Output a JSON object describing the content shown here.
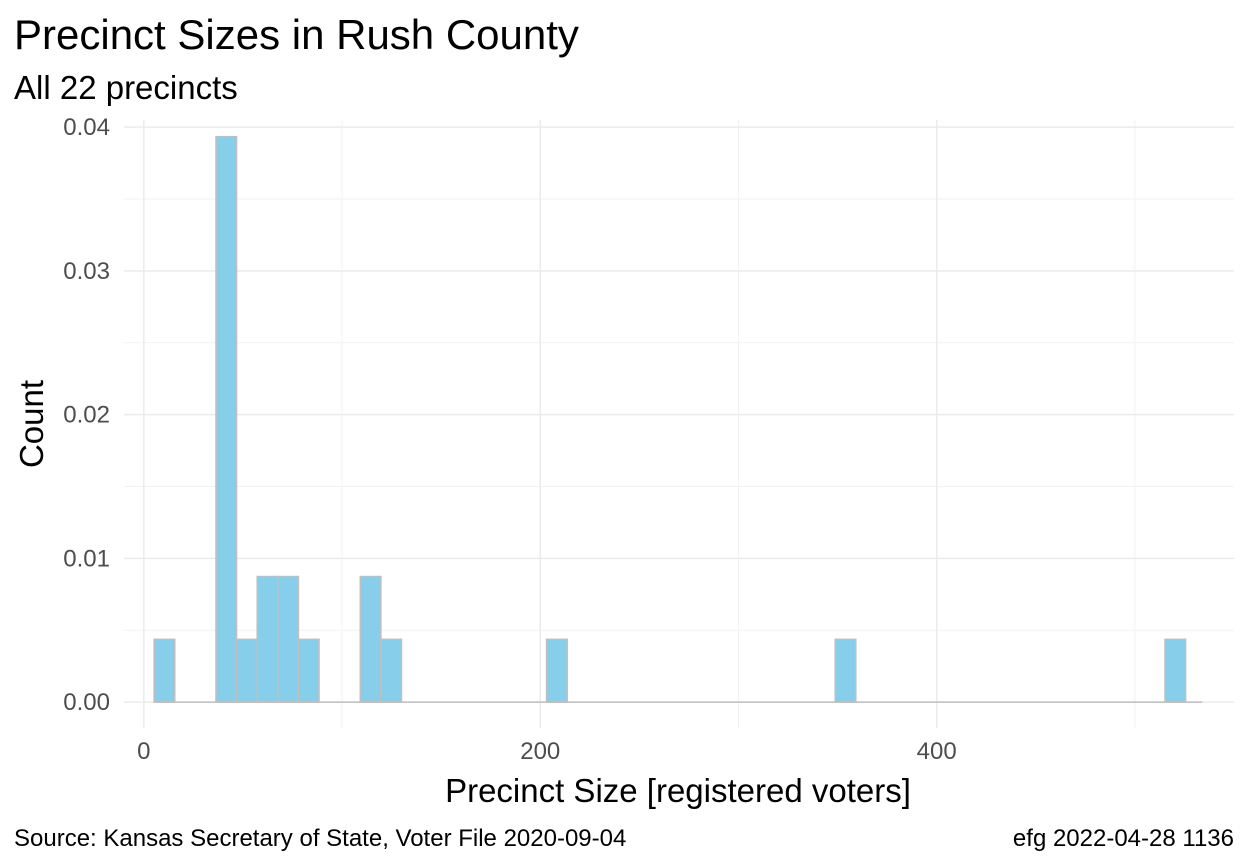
{
  "chart_data": {
    "type": "bar",
    "title": "Precinct Sizes in Rush County",
    "subtitle": "All 22 precincts",
    "xlabel": "Precinct Size [registered voters]",
    "ylabel": "Count",
    "caption_left": "Source:  Kansas Secretary of State, Voter File  2020-09-04",
    "caption_right": "efg 2022-04-28 1136",
    "xlim": [
      -10,
      550
    ],
    "ylim": [
      -0.0018,
      0.0405
    ],
    "x_ticks": [
      0,
      200,
      400
    ],
    "x_tick_labels": [
      "0",
      "200",
      "400"
    ],
    "y_ticks": [
      0,
      0.01,
      0.02,
      0.03,
      0.04
    ],
    "y_tick_labels": [
      "0.00",
      "0.01",
      "0.02",
      "0.03",
      "0.04"
    ],
    "grid": true,
    "bin_width": 10.4,
    "baseline_range": [
      5,
      534
    ],
    "bars": [
      {
        "x0": 5.2,
        "x1": 15.6,
        "value": 0.00437
      },
      {
        "x0": 36.4,
        "x1": 46.8,
        "value": 0.03934
      },
      {
        "x0": 46.8,
        "x1": 57.2,
        "value": 0.00437
      },
      {
        "x0": 57.2,
        "x1": 67.6,
        "value": 0.00874
      },
      {
        "x0": 67.6,
        "x1": 78.0,
        "value": 0.00874
      },
      {
        "x0": 78.0,
        "x1": 88.4,
        "value": 0.00437
      },
      {
        "x0": 109.2,
        "x1": 119.6,
        "value": 0.00874
      },
      {
        "x0": 119.6,
        "x1": 130.0,
        "value": 0.00437
      },
      {
        "x0": 203.2,
        "x1": 213.6,
        "value": 0.00437
      },
      {
        "x0": 348.8,
        "x1": 359.2,
        "value": 0.00437
      },
      {
        "x0": 515.2,
        "x1": 525.6,
        "value": 0.00437
      }
    ],
    "colors": {
      "bar_fill": "#87ceeb",
      "bar_border": "#bfbfbf",
      "grid_major": "#ebebeb",
      "grid_minor": "#f2f2f2"
    }
  }
}
